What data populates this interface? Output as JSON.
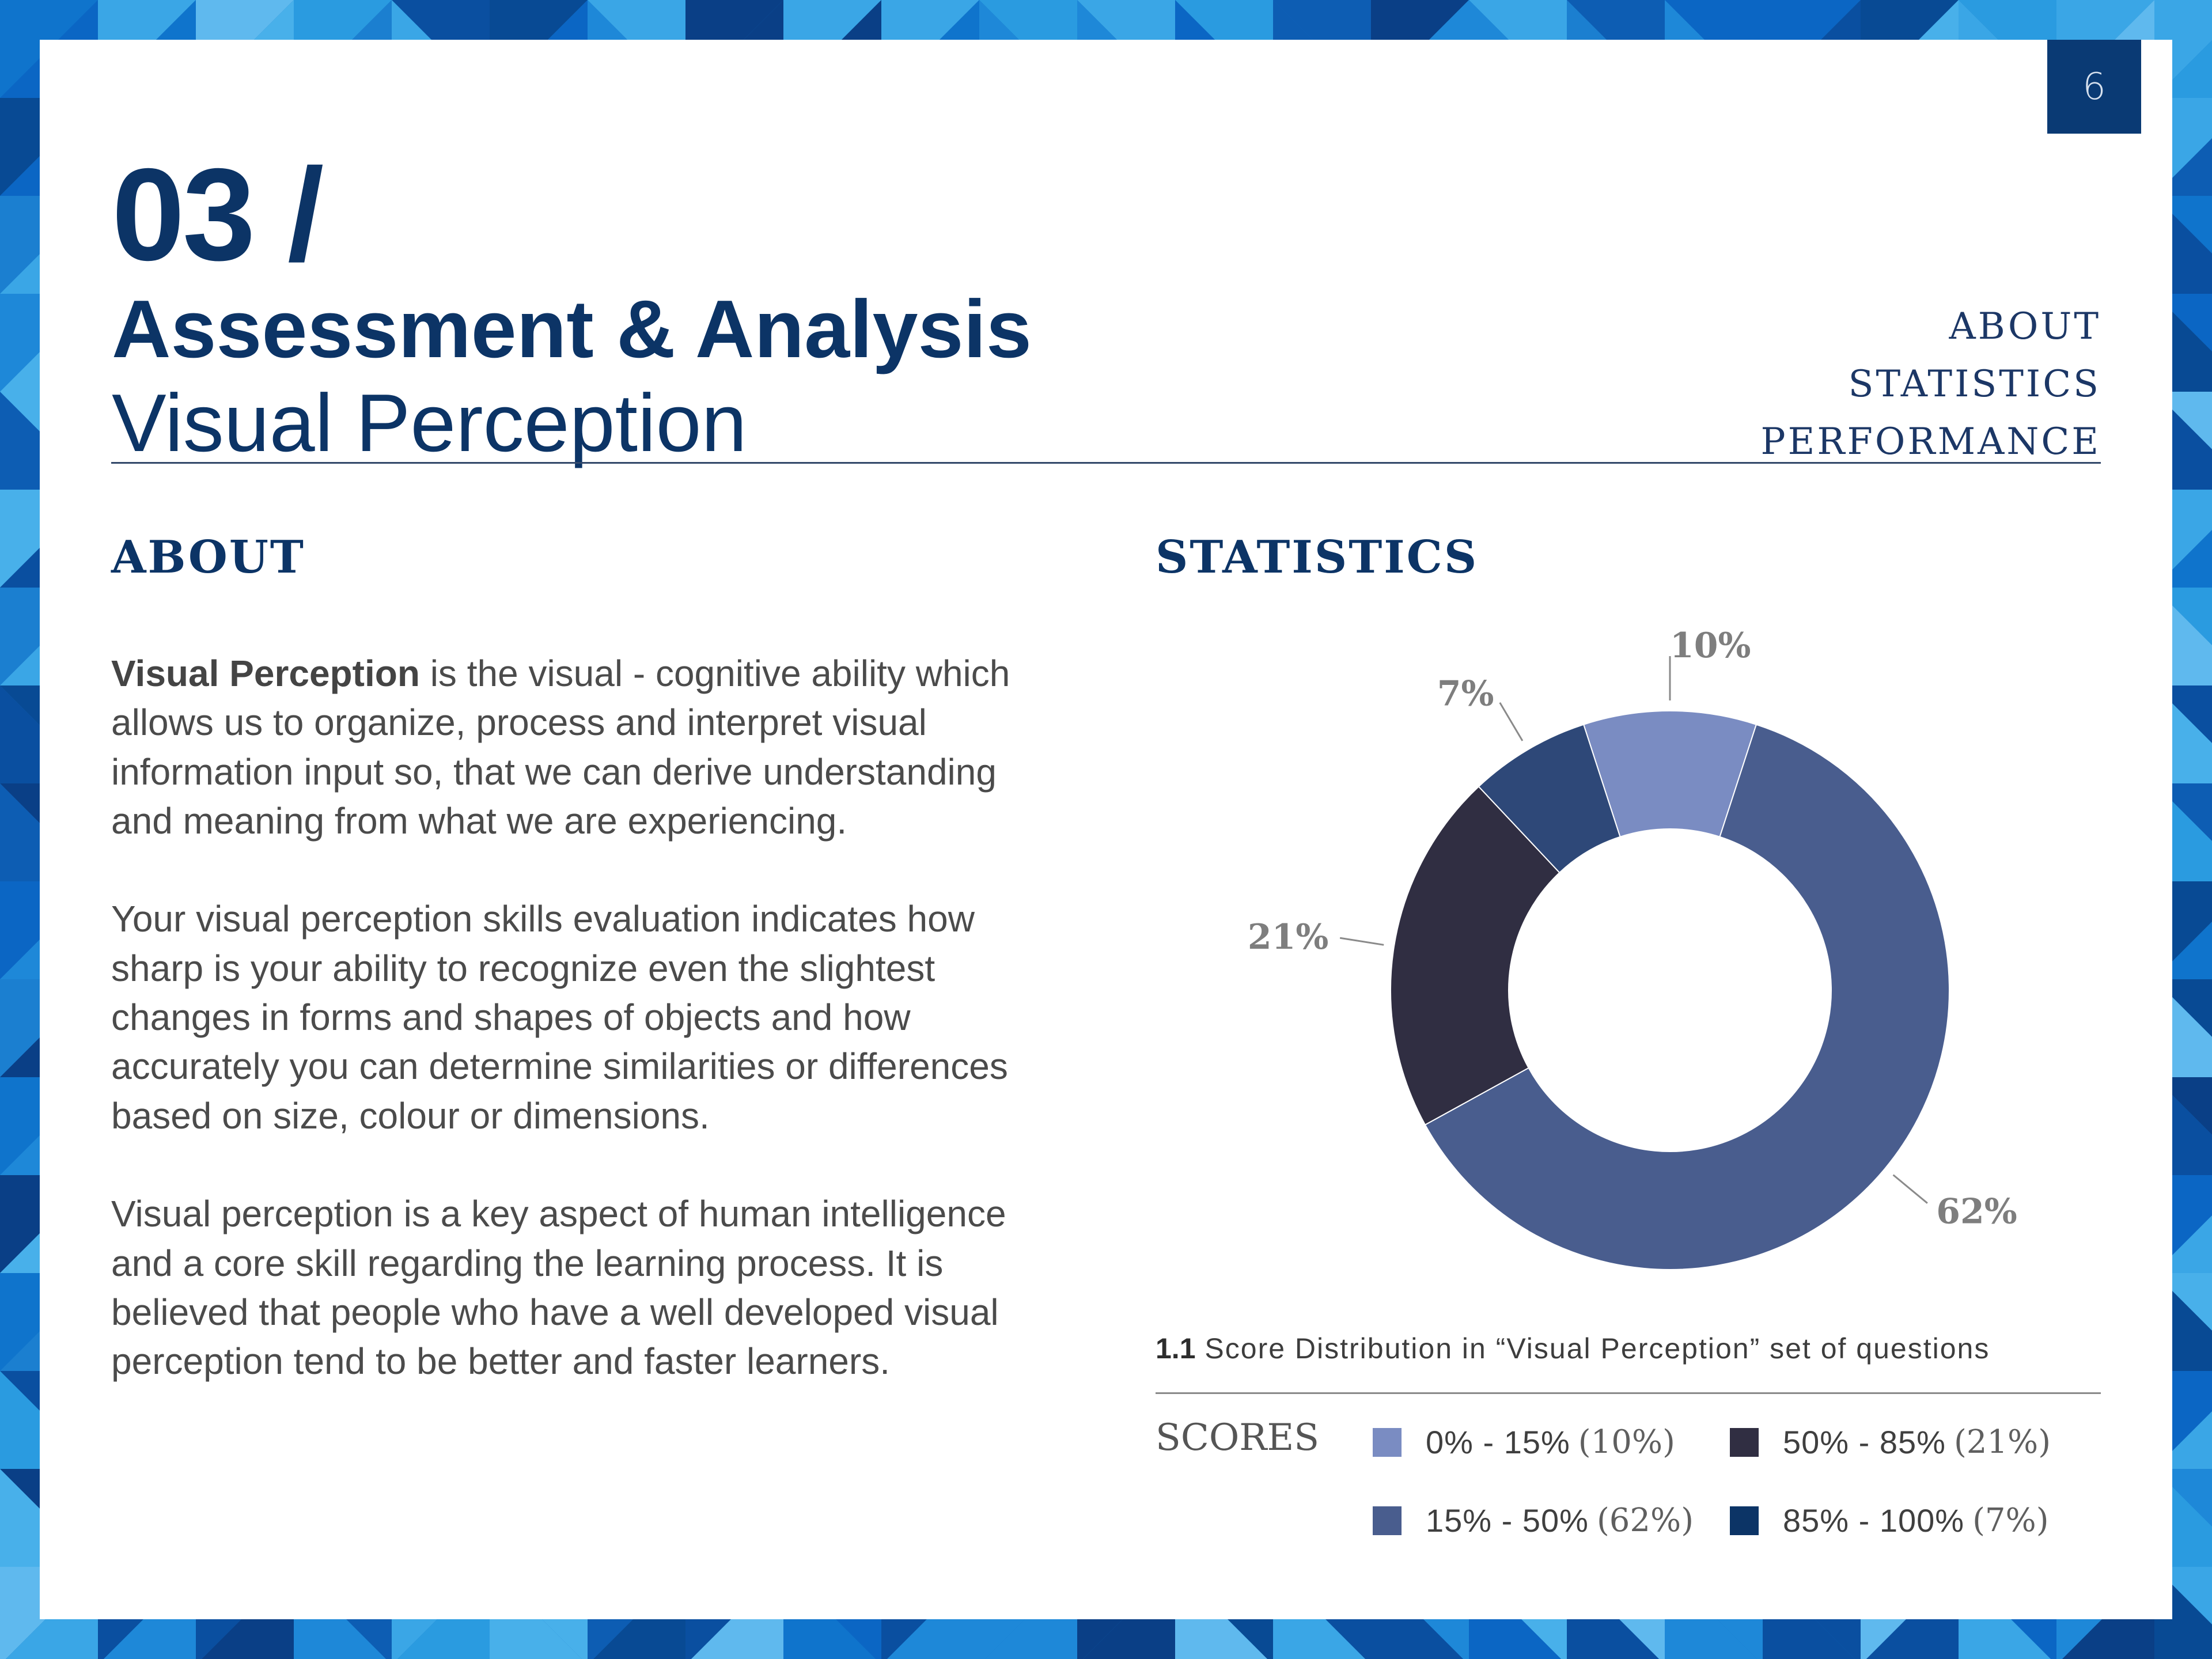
{
  "page_number": "6",
  "header": {
    "section_number": "03 /",
    "title": "Assessment & Analysis",
    "subtitle": "Visual Perception"
  },
  "nav": [
    "ABOUT",
    "STATISTICS",
    "PERFORMANCE"
  ],
  "about": {
    "heading": "ABOUT",
    "p1_bold": "Visual Perception",
    "p1_rest": " is the visual - cognitive ability which allows us to organize, process and interpret visual information input so, that we can derive understanding and meaning from what we are experiencing.",
    "p2": "Your visual perception skills evaluation indicates how sharp is your ability to recognize even the slightest changes in forms and shapes of objects and how accurately you can determine similarities or differences based on size, colour or dimensions.",
    "p3": "Visual perception is a key aspect of human intelligence and a core skill regarding the learning process. It is believed that people who have a well developed visual perception tend to be better and faster learners."
  },
  "statistics": {
    "heading": "STATISTICS",
    "caption_number": "1.1",
    "caption_text": " Score Distribution in “Visual Perception” set of questions",
    "legend_title": "SCORES",
    "legend": [
      {
        "label": "0% - 15%",
        "pct": "(10%)",
        "color": "#7a8cc2"
      },
      {
        "label": "50% - 85%",
        "pct": "(21%)",
        "color": "#302e42"
      },
      {
        "label": "15% - 50%",
        "pct": "(62%)",
        "color": "#495d8e"
      },
      {
        "label": "85% - 100%",
        "pct": "(7%)",
        "color": "#0c3466"
      }
    ]
  },
  "chart_data": {
    "type": "pie",
    "donut": true,
    "categories": [
      "0% - 15%",
      "15% - 50%",
      "50% - 85%",
      "85% - 100%"
    ],
    "values": [
      10,
      62,
      21,
      7
    ],
    "data_labels": [
      "10%",
      "62%",
      "21%",
      "7%"
    ],
    "colors": [
      "#7a8cc2",
      "#495d8e",
      "#302e42",
      "#2e4878"
    ],
    "label_color": "#7e7e7e"
  }
}
